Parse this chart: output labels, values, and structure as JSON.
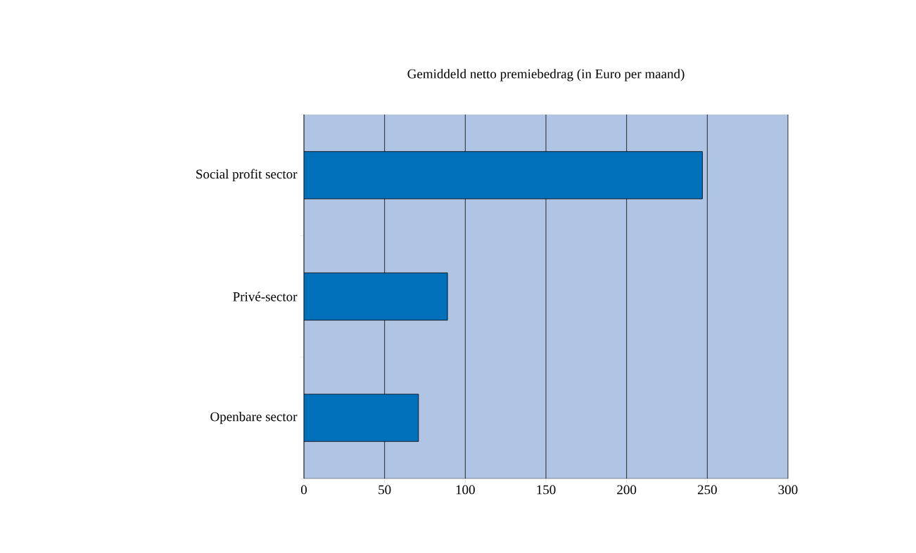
{
  "chart_data": {
    "type": "bar",
    "orientation": "horizontal",
    "title": "Gemiddeld netto premiebedrag (in Euro per maand)",
    "categories": [
      "Social profit sector",
      "Privé-sector",
      "Openbare sector"
    ],
    "values": [
      247,
      89,
      71
    ],
    "color": "#0070bb",
    "xlim": [
      0,
      300
    ],
    "xticks": [
      0,
      50,
      100,
      150,
      200,
      250,
      300
    ],
    "grid": "x"
  }
}
